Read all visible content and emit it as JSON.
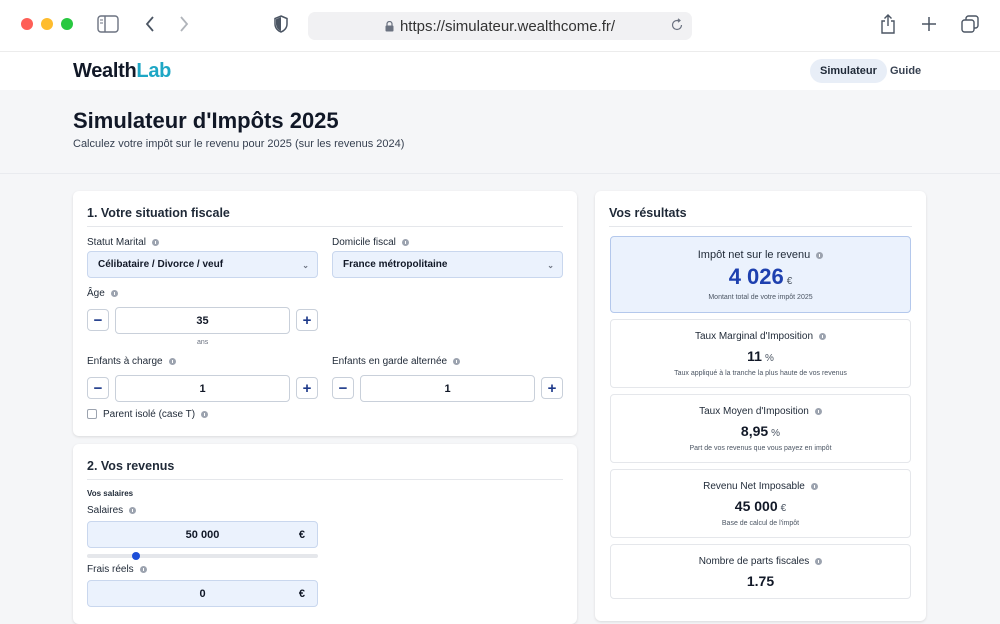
{
  "browser": {
    "url": "https://simulateur.wealthcome.fr/"
  },
  "site": {
    "logo_part1": "Wealth",
    "logo_part2": "Lab",
    "nav": {
      "simulateur": "Simulateur",
      "guide": "Guide"
    }
  },
  "header": {
    "title": "Simulateur d'Impôts 2025",
    "subtitle": "Calculez votre impôt sur le revenu pour 2025 (sur les revenus 2024)"
  },
  "situation": {
    "title": "1. Votre situation fiscale",
    "statut_label": "Statut Marital",
    "statut_value": "Célibataire / Divorce / veuf",
    "domicile_label": "Domicile fiscal",
    "domicile_value": "France métropolitaine",
    "age_label": "Âge",
    "age_value": "35",
    "age_unit": "ans",
    "enfants_label": "Enfants à charge",
    "enfants_value": "1",
    "garde_label": "Enfants en garde alternée",
    "garde_value": "1",
    "parent_isole_label": "Parent isolé (case T)"
  },
  "revenus": {
    "title": "2. Vos revenus",
    "section_label": "Vos salaires",
    "salaires_label": "Salaires",
    "salaires_value": "50 000",
    "currency": "€",
    "salaires_slider_fraction": 0.21,
    "frais_label": "Frais réels",
    "frais_value": "0"
  },
  "resultats": {
    "title": "Vos résultats",
    "impot": {
      "label": "Impôt net sur le revenu",
      "value": "4 026",
      "unit": "€",
      "sub": "Montant total de votre impôt 2025"
    },
    "tmi": {
      "label": "Taux Marginal d'Imposition",
      "value": "11",
      "unit": "%",
      "sub": "Taux appliqué à la tranche la plus haute de vos revenus"
    },
    "taux_moyen": {
      "label": "Taux Moyen d'Imposition",
      "value": "8,95",
      "unit": "%",
      "sub": "Part de vos revenus que vous payez en impôt"
    },
    "revenu_net": {
      "label": "Revenu Net Imposable",
      "value": "45 000",
      "unit": "€",
      "sub": "Base de calcul de l'impôt"
    },
    "parts": {
      "label": "Nombre de parts fiscales",
      "value": "1.75"
    }
  },
  "colors": {
    "accent": "#1d4ed8",
    "logo_accent": "#1ea7c5",
    "input_bg": "#ebf2fd",
    "highlight_value": "#1e40af"
  },
  "icons": {
    "traffic_lights": [
      "close-dot",
      "minimize-dot",
      "zoom-dot"
    ],
    "toolbar": [
      "sidebar-icon",
      "back-icon",
      "forward-icon",
      "shield-icon",
      "lock-icon",
      "reload-icon",
      "share-icon",
      "new-tab-icon",
      "tabs-overview-icon"
    ]
  }
}
